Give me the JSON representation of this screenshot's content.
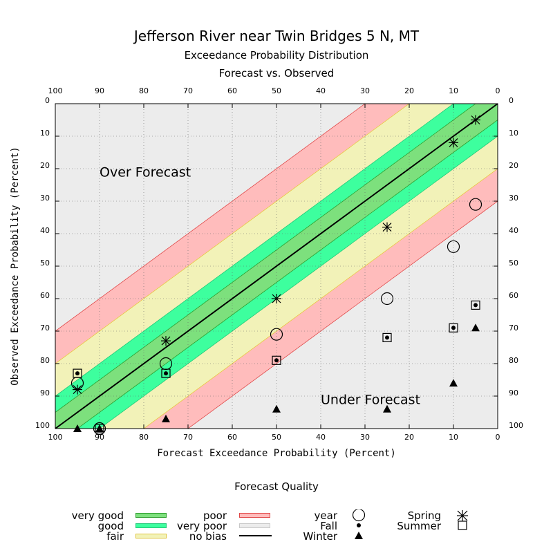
{
  "titles": {
    "main": "Jefferson River near Twin Bridges 5 N, MT",
    "sub1": "Exceedance Probability Distribution",
    "sub2": "Forecast vs. Observed"
  },
  "colors": {
    "very_good": "#7de07d",
    "good": "#3dff9e",
    "fair": "#f2f2b8",
    "poor": "#ffbcbc",
    "no_bias_bg": "#ececec",
    "line": "#000000"
  },
  "chart_data": {
    "type": "scatter",
    "xlabel": "Forecast Exceedance Probability (Percent)",
    "ylabel": "Observed Exceedance Probability (Percent)",
    "xlim": [
      100,
      0
    ],
    "ylim": [
      0,
      100
    ],
    "xticks": [
      "100",
      "90",
      "80",
      "70",
      "60",
      "50",
      "40",
      "30",
      "20",
      "10",
      "0"
    ],
    "yticks": [
      "0",
      "10",
      "20",
      "30",
      "40",
      "50",
      "60",
      "70",
      "80",
      "90",
      "100"
    ],
    "grid": true,
    "annotations": [
      {
        "text": "Over Forecast",
        "x": 90,
        "y": 21
      },
      {
        "text": "Under Forecast",
        "x": 40,
        "y": 91
      }
    ],
    "bands": {
      "very_good": 5,
      "good": 10,
      "fair": 20,
      "poor": 30
    },
    "series": [
      {
        "name": "year",
        "marker": "circle",
        "points": [
          [
            95,
            86
          ],
          [
            90,
            100
          ],
          [
            75,
            80
          ],
          [
            50,
            71
          ],
          [
            25,
            60
          ],
          [
            10,
            44
          ],
          [
            5,
            31
          ]
        ]
      },
      {
        "name": "Fall",
        "marker": "dot",
        "points": [
          [
            95,
            83
          ],
          [
            75,
            83
          ],
          [
            50,
            79
          ],
          [
            25,
            72
          ],
          [
            10,
            69
          ],
          [
            5,
            62
          ]
        ]
      },
      {
        "name": "Winter",
        "marker": "triangle",
        "points": [
          [
            95,
            100
          ],
          [
            90,
            100
          ],
          [
            75,
            97
          ],
          [
            50,
            94
          ],
          [
            25,
            94
          ],
          [
            10,
            86
          ],
          [
            5,
            69
          ]
        ]
      },
      {
        "name": "Spring",
        "marker": "star",
        "points": [
          [
            95,
            88
          ],
          [
            75,
            73
          ],
          [
            50,
            60
          ],
          [
            25,
            38
          ],
          [
            10,
            12
          ],
          [
            5,
            5
          ]
        ]
      },
      {
        "name": "Summer",
        "marker": "square",
        "points": [
          [
            95,
            83
          ],
          [
            90,
            100
          ],
          [
            75,
            83
          ],
          [
            50,
            79
          ],
          [
            25,
            72
          ],
          [
            10,
            69
          ],
          [
            5,
            62
          ]
        ]
      }
    ]
  },
  "legend": {
    "title": "Forecast Quality",
    "very_good": "very good",
    "good": "good",
    "fair": "fair",
    "poor": "poor",
    "very_poor": "very poor",
    "no_bias": "no bias",
    "year": "year",
    "fall": "Fall",
    "winter": "Winter",
    "spring": "Spring",
    "summer": "Summer"
  }
}
